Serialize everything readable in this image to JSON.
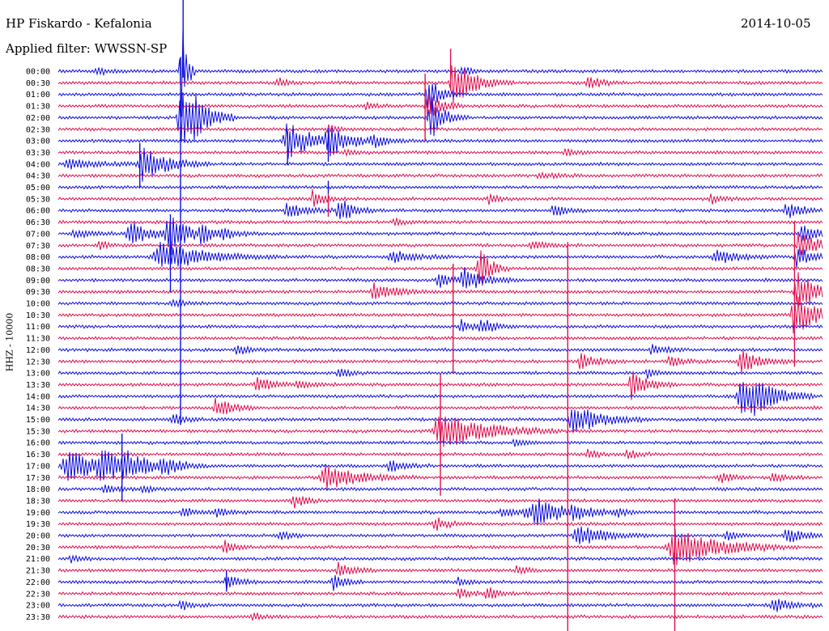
{
  "header": {
    "station": "HP Fiskardo - Kefalonia",
    "filter": "Applied filter: WWSSN-SP",
    "date": "2014-10-05"
  },
  "channel": "HHZ - 10000",
  "colors": {
    "blue": "#1010e0",
    "red": "#e01050"
  },
  "chart_data": {
    "type": "line",
    "title": "HP Fiskardo - Kefalonia",
    "subtitle": "Applied filter: WWSSN-SP",
    "date": "2014-10-05",
    "ylabel": "HHZ - 10000",
    "row_labels": [
      "00:00",
      "00:30",
      "01:00",
      "01:30",
      "02:00",
      "02:30",
      "03:00",
      "03:30",
      "04:00",
      "04:30",
      "05:00",
      "05:30",
      "06:00",
      "06:30",
      "07:00",
      "07:30",
      "08:00",
      "08:30",
      "09:00",
      "09:30",
      "10:00",
      "10:30",
      "11:00",
      "11:30",
      "12:00",
      "12:30",
      "13:00",
      "13:30",
      "14:00",
      "14:30",
      "15:00",
      "15:30",
      "16:00",
      "16:30",
      "17:00",
      "17:30",
      "18:00",
      "18:30",
      "19:00",
      "19:30",
      "20:00",
      "20:30",
      "21:00",
      "21:30",
      "22:00",
      "22:30",
      "23:00",
      "23:30"
    ],
    "row_colors": [
      "blue",
      "red"
    ],
    "x_minutes_per_row": 30,
    "events": [
      {
        "row": 0,
        "minute": 1.5,
        "amp": 6,
        "width": 0.4
      },
      {
        "row": 0,
        "minute": 4.8,
        "amp": 90,
        "width": 0.2
      },
      {
        "row": 0,
        "minute": 15.8,
        "amp": 8,
        "width": 0.3
      },
      {
        "row": 1,
        "minute": 15.5,
        "amp": 28,
        "width": 0.8
      },
      {
        "row": 1,
        "minute": 20.8,
        "amp": 8,
        "width": 0.5
      },
      {
        "row": 1,
        "minute": 8.6,
        "amp": 6,
        "width": 0.4
      },
      {
        "row": 2,
        "minute": 14.5,
        "amp": 25,
        "width": 0.4
      },
      {
        "row": 3,
        "minute": 14.5,
        "amp": 18,
        "width": 0.5
      },
      {
        "row": 3,
        "minute": 12.1,
        "amp": 4,
        "width": 0.4
      },
      {
        "row": 4,
        "minute": 4.8,
        "amp": 40,
        "width": 0.7
      },
      {
        "row": 4,
        "minute": 5.2,
        "amp": 14,
        "width": 0.6
      },
      {
        "row": 4,
        "minute": 14.6,
        "amp": 28,
        "width": 0.5
      },
      {
        "row": 5,
        "minute": 10.6,
        "amp": 5,
        "width": 0.4
      },
      {
        "row": 6,
        "minute": 9.0,
        "amp": 22,
        "width": 1.0
      },
      {
        "row": 6,
        "minute": 10.6,
        "amp": 16,
        "width": 0.8
      },
      {
        "row": 6,
        "minute": 12.3,
        "amp": 8,
        "width": 0.6
      },
      {
        "row": 7,
        "minute": 11.3,
        "amp": 4,
        "width": 0.4
      },
      {
        "row": 7,
        "minute": 19.9,
        "amp": 4,
        "width": 0.4
      },
      {
        "row": 8,
        "minute": 0.4,
        "amp": 5,
        "width": 1.2
      },
      {
        "row": 8,
        "minute": 3.3,
        "amp": 22,
        "width": 0.9
      },
      {
        "row": 9,
        "minute": 18.9,
        "amp": 3,
        "width": 0.8
      },
      {
        "row": 11,
        "minute": 10.0,
        "amp": 12,
        "width": 0.4
      },
      {
        "row": 11,
        "minute": 16.9,
        "amp": 6,
        "width": 0.4
      },
      {
        "row": 11,
        "minute": 25.6,
        "amp": 6,
        "width": 0.4
      },
      {
        "row": 12,
        "minute": 9.0,
        "amp": 9,
        "width": 0.8
      },
      {
        "row": 12,
        "minute": 11.0,
        "amp": 18,
        "width": 0.5
      },
      {
        "row": 12,
        "minute": 19.4,
        "amp": 10,
        "width": 0.4
      },
      {
        "row": 12,
        "minute": 28.6,
        "amp": 10,
        "width": 0.6
      },
      {
        "row": 13,
        "minute": 13.2,
        "amp": 4,
        "width": 0.4
      },
      {
        "row": 14,
        "minute": 0.6,
        "amp": 4,
        "width": 0.8
      },
      {
        "row": 14,
        "minute": 2.8,
        "amp": 15,
        "width": 0.8
      },
      {
        "row": 14,
        "minute": 4.3,
        "amp": 30,
        "width": 0.6
      },
      {
        "row": 14,
        "minute": 5.6,
        "amp": 10,
        "width": 0.6
      },
      {
        "row": 14,
        "minute": 6.4,
        "amp": 6,
        "width": 0.5
      },
      {
        "row": 14,
        "minute": 29.2,
        "amp": 12,
        "width": 0.6
      },
      {
        "row": 15,
        "minute": 1.6,
        "amp": 5,
        "width": 0.4
      },
      {
        "row": 15,
        "minute": 18.6,
        "amp": 4,
        "width": 0.6
      },
      {
        "row": 15,
        "minute": 29.1,
        "amp": 22,
        "width": 0.6
      },
      {
        "row": 16,
        "minute": 4.0,
        "amp": 18,
        "width": 1.6
      },
      {
        "row": 16,
        "minute": 13.1,
        "amp": 8,
        "width": 0.8
      },
      {
        "row": 16,
        "minute": 25.8,
        "amp": 10,
        "width": 0.8
      },
      {
        "row": 16,
        "minute": 29.0,
        "amp": 14,
        "width": 0.6
      },
      {
        "row": 17,
        "minute": 16.5,
        "amp": 30,
        "width": 0.4
      },
      {
        "row": 18,
        "minute": 14.9,
        "amp": 10,
        "width": 0.5
      },
      {
        "row": 18,
        "minute": 15.9,
        "amp": 14,
        "width": 0.8
      },
      {
        "row": 19,
        "minute": 12.4,
        "amp": 10,
        "width": 0.8
      },
      {
        "row": 19,
        "minute": 29.0,
        "amp": 30,
        "width": 0.6
      },
      {
        "row": 20,
        "minute": 4.5,
        "amp": 4,
        "width": 0.5
      },
      {
        "row": 21,
        "minute": 28.9,
        "amp": 26,
        "width": 0.8
      },
      {
        "row": 22,
        "minute": 16.6,
        "amp": 10,
        "width": 0.5
      },
      {
        "row": 22,
        "minute": 15.8,
        "amp": 8,
        "width": 0.4
      },
      {
        "row": 24,
        "minute": 7.0,
        "amp": 8,
        "width": 0.4
      },
      {
        "row": 24,
        "minute": 23.3,
        "amp": 6,
        "width": 0.5
      },
      {
        "row": 25,
        "minute": 20.5,
        "amp": 10,
        "width": 0.6
      },
      {
        "row": 25,
        "minute": 26.8,
        "amp": 14,
        "width": 0.7
      },
      {
        "row": 25,
        "minute": 24.0,
        "amp": 6,
        "width": 0.5
      },
      {
        "row": 26,
        "minute": 11.0,
        "amp": 6,
        "width": 0.4
      },
      {
        "row": 26,
        "minute": 23.1,
        "amp": 6,
        "width": 0.4
      },
      {
        "row": 27,
        "minute": 7.8,
        "amp": 10,
        "width": 0.6
      },
      {
        "row": 27,
        "minute": 9.4,
        "amp": 6,
        "width": 0.5
      },
      {
        "row": 27,
        "minute": 22.5,
        "amp": 18,
        "width": 0.6
      },
      {
        "row": 28,
        "minute": 26.8,
        "amp": 22,
        "width": 1.0
      },
      {
        "row": 28,
        "minute": 27.3,
        "amp": 12,
        "width": 0.8
      },
      {
        "row": 29,
        "minute": 6.2,
        "amp": 12,
        "width": 0.6
      },
      {
        "row": 30,
        "minute": 4.5,
        "amp": 6,
        "width": 0.5
      },
      {
        "row": 30,
        "minute": 20.2,
        "amp": 20,
        "width": 1.0
      },
      {
        "row": 31,
        "minute": 15.0,
        "amp": 24,
        "width": 1.6
      },
      {
        "row": 32,
        "minute": 17.9,
        "amp": 5,
        "width": 0.4
      },
      {
        "row": 33,
        "minute": 20.8,
        "amp": 6,
        "width": 0.4
      },
      {
        "row": 33,
        "minute": 22.3,
        "amp": 6,
        "width": 0.4
      },
      {
        "row": 34,
        "minute": 0.4,
        "amp": 18,
        "width": 1.6
      },
      {
        "row": 34,
        "minute": 1.7,
        "amp": 12,
        "width": 1.4
      },
      {
        "row": 34,
        "minute": 2.6,
        "amp": 10,
        "width": 0.6
      },
      {
        "row": 34,
        "minute": 4.1,
        "amp": 8,
        "width": 0.6
      },
      {
        "row": 34,
        "minute": 13.0,
        "amp": 8,
        "width": 0.6
      },
      {
        "row": 35,
        "minute": 10.5,
        "amp": 15,
        "width": 1.2
      },
      {
        "row": 35,
        "minute": 26.0,
        "amp": 6,
        "width": 0.5
      },
      {
        "row": 35,
        "minute": 28.0,
        "amp": 5,
        "width": 0.5
      },
      {
        "row": 36,
        "minute": 1.8,
        "amp": 6,
        "width": 0.5
      },
      {
        "row": 36,
        "minute": 3.3,
        "amp": 5,
        "width": 0.5
      },
      {
        "row": 37,
        "minute": 9.2,
        "amp": 10,
        "width": 0.4
      },
      {
        "row": 38,
        "minute": 4.9,
        "amp": 5,
        "width": 0.5
      },
      {
        "row": 38,
        "minute": 6.2,
        "amp": 5,
        "width": 0.5
      },
      {
        "row": 38,
        "minute": 17.4,
        "amp": 6,
        "width": 0.5
      },
      {
        "row": 38,
        "minute": 18.3,
        "amp": 6,
        "width": 0.6
      },
      {
        "row": 38,
        "minute": 18.8,
        "amp": 14,
        "width": 1.2
      },
      {
        "row": 38,
        "minute": 20.2,
        "amp": 10,
        "width": 0.5
      },
      {
        "row": 38,
        "minute": 21.9,
        "amp": 5,
        "width": 0.4
      },
      {
        "row": 39,
        "minute": 14.8,
        "amp": 8,
        "width": 0.5
      },
      {
        "row": 40,
        "minute": 20.4,
        "amp": 14,
        "width": 1.0
      },
      {
        "row": 40,
        "minute": 8.7,
        "amp": 6,
        "width": 0.4
      },
      {
        "row": 40,
        "minute": 28.6,
        "amp": 10,
        "width": 0.6
      },
      {
        "row": 40,
        "minute": 26.2,
        "amp": 6,
        "width": 0.4
      },
      {
        "row": 41,
        "minute": 24.2,
        "amp": 24,
        "width": 1.6
      },
      {
        "row": 41,
        "minute": 6.5,
        "amp": 8,
        "width": 0.4
      },
      {
        "row": 42,
        "minute": 0.5,
        "amp": 4,
        "width": 0.4
      },
      {
        "row": 43,
        "minute": 11.0,
        "amp": 10,
        "width": 0.5
      },
      {
        "row": 43,
        "minute": 18.0,
        "amp": 5,
        "width": 0.4
      },
      {
        "row": 44,
        "minute": 6.6,
        "amp": 12,
        "width": 0.4
      },
      {
        "row": 44,
        "minute": 10.8,
        "amp": 12,
        "width": 0.4
      },
      {
        "row": 44,
        "minute": 15.7,
        "amp": 5,
        "width": 0.4
      },
      {
        "row": 45,
        "minute": 15.7,
        "amp": 8,
        "width": 0.4
      },
      {
        "row": 45,
        "minute": 16.8,
        "amp": 10,
        "width": 0.4
      },
      {
        "row": 46,
        "minute": 4.8,
        "amp": 6,
        "width": 0.4
      },
      {
        "row": 46,
        "minute": 28.1,
        "amp": 8,
        "width": 0.8
      },
      {
        "row": 47,
        "minute": 7.6,
        "amp": 5,
        "width": 0.4
      }
    ],
    "spikes": [
      {
        "row": 0,
        "minute": 4.9,
        "up": 90,
        "down": 8
      },
      {
        "row": 1,
        "minute": 15.4,
        "up": 42,
        "down": 10
      },
      {
        "row": 3,
        "minute": 14.4,
        "up": 40,
        "down": 44
      },
      {
        "row": 4,
        "minute": 4.8,
        "up": 75,
        "down": 380
      },
      {
        "row": 6,
        "minute": 9.0,
        "up": 12,
        "down": 30
      },
      {
        "row": 6,
        "minute": 10.6,
        "up": 16,
        "down": 26
      },
      {
        "row": 8,
        "minute": 3.2,
        "up": 26,
        "down": 30
      },
      {
        "row": 10,
        "minute": 10.6,
        "up": 8,
        "down": 8
      },
      {
        "row": 11,
        "minute": 10.6,
        "up": 6,
        "down": 22
      },
      {
        "row": 14,
        "minute": 4.4,
        "up": 24,
        "down": 20
      },
      {
        "row": 16,
        "minute": 4.4,
        "up": 30,
        "down": 44
      },
      {
        "row": 15,
        "minute": 20.0,
        "up": 4,
        "down": 480
      },
      {
        "row": 15,
        "minute": 28.9,
        "up": 30,
        "down": 150
      },
      {
        "row": 17,
        "minute": 15.5,
        "up": 6,
        "down": 130
      },
      {
        "row": 31,
        "minute": 15.0,
        "up": 70,
        "down": 80
      },
      {
        "row": 34,
        "minute": 2.5,
        "up": 40,
        "down": 44
      },
      {
        "row": 41,
        "minute": 24.2,
        "up": 60,
        "down": 120
      },
      {
        "row": 44,
        "minute": 6.6,
        "up": 14,
        "down": 12
      }
    ]
  }
}
